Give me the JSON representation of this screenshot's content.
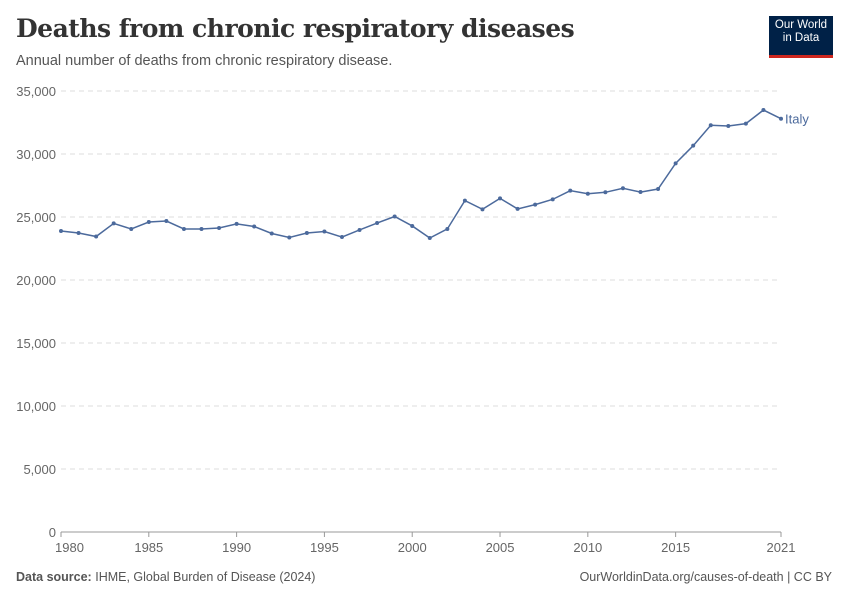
{
  "header": {
    "title": "Deaths from chronic respiratory diseases",
    "subtitle": "Annual number of deaths from chronic respiratory disease.",
    "logo": "Our World in Data"
  },
  "footer": {
    "source_label": "Data source:",
    "source": "IHME, Global Burden of Disease (2024)",
    "link": "OurWorldinData.org/causes-of-death | CC BY"
  },
  "chart_data": {
    "type": "line",
    "title": "Deaths from chronic respiratory diseases",
    "xlim": [
      1980,
      2021
    ],
    "ylim": [
      0,
      35000
    ],
    "grid": "horizontal dashed",
    "yticks": [
      0,
      5000,
      10000,
      15000,
      20000,
      25000,
      30000,
      35000
    ],
    "ytick_labels": [
      "0",
      "5,000",
      "10,000",
      "15,000",
      "20,000",
      "25,000",
      "30,000",
      "35,000"
    ],
    "xticks": [
      1980,
      1985,
      1990,
      1995,
      2000,
      2005,
      2010,
      2015,
      2021
    ],
    "xtick_labels": [
      "1980",
      "1985",
      "1990",
      "1995",
      "2000",
      "2005",
      "2010",
      "2015",
      "2021"
    ],
    "series": [
      {
        "name": "Italy",
        "color": "#4c6a9c",
        "x": [
          1980,
          1981,
          1982,
          1983,
          1984,
          1985,
          1986,
          1987,
          1988,
          1989,
          1990,
          1991,
          1992,
          1993,
          1994,
          1995,
          1996,
          1997,
          1998,
          1999,
          2000,
          2001,
          2002,
          2003,
          2004,
          2005,
          2006,
          2007,
          2008,
          2009,
          2010,
          2011,
          2012,
          2013,
          2014,
          2015,
          2016,
          2017,
          2018,
          2019,
          2020,
          2021
        ],
        "values": [
          23890,
          23730,
          23450,
          24490,
          24050,
          24600,
          24680,
          24050,
          24050,
          24130,
          24450,
          24250,
          23690,
          23370,
          23730,
          23850,
          23410,
          23970,
          24520,
          25040,
          24290,
          23330,
          24050,
          26300,
          25610,
          26480,
          25640,
          25980,
          26400,
          27090,
          26850,
          26960,
          27280,
          26980,
          27220,
          29260,
          30660,
          32280,
          32220,
          32410,
          33490,
          32800
        ]
      }
    ]
  }
}
